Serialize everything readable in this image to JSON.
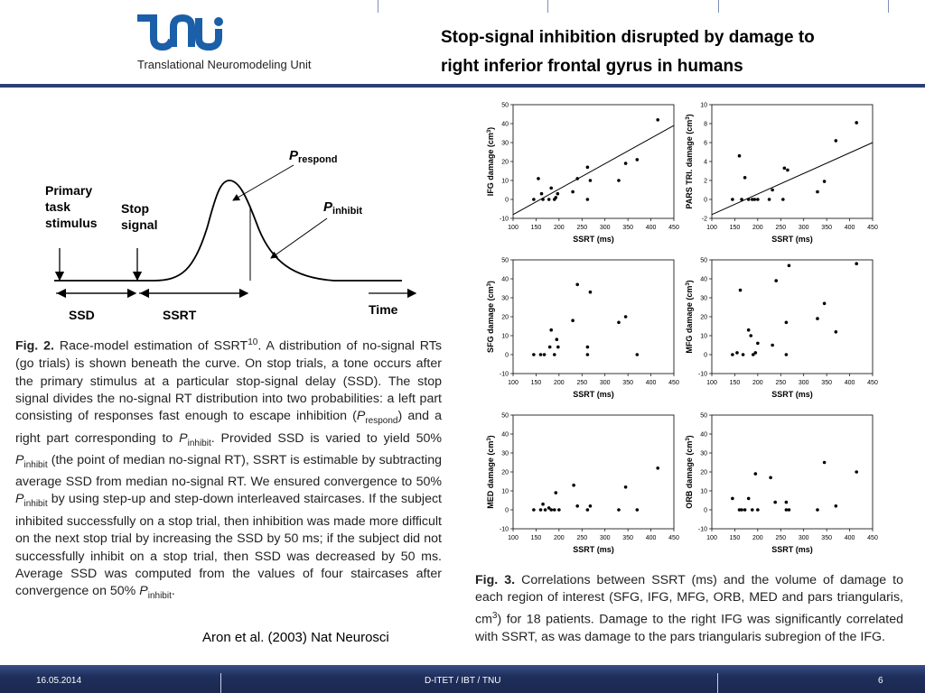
{
  "header": {
    "logo_text": "Translational Neuromodeling Unit",
    "title_line1": "Stop-signal inhibition disrupted by damage to",
    "title_line2": "right inferior frontal gyrus in humans"
  },
  "race_model": {
    "label_primary": [
      "Primary",
      "task",
      "stimulus"
    ],
    "label_stop": [
      "Stop",
      "signal"
    ],
    "p_respond": "P",
    "p_respond_sub": "respond",
    "p_inhibit": "P",
    "p_inhibit_sub": "inhibit",
    "ssd": "SSD",
    "ssrt": "SSRT",
    "time": "Time"
  },
  "fig2_caption": {
    "label": "Fig. 2.",
    "part1": " Race-model estimation of SSRT",
    "sup": "10",
    "part2": ". A distribution of no-signal RTs (go trials) is shown beneath the curve. On stop trials, a tone occurs after the primary stimulus at a particular stop-signal delay (SSD). The stop signal divides the no-signal RT distribution into two probabilities: a left part consisting of responses fast enough to escape inhibition (",
    "p": "P",
    "sub_respond": "respond",
    "part3": ") and a right part corresponding to ",
    "sub_inhibit": "inhibit",
    "part4": ". Provided SSD is varied to yield 50% ",
    "part5": " (the point of median no-signal RT), SSRT is estimable by subtracting average SSD from median no-signal RT. We ensured convergence to 50% ",
    "part6": " by using step-up and step-down interleaved staircases. If the subject inhibited successfully on a stop trial, then inhibition was made more difficult on the next stop trial by increasing the SSD by 50 ms; if the subject did not successfully inhibit on a stop trial, then SSD was decreased by 50 ms. Average SSD was computed from the values of four staircases after convergence on 50% ",
    "part7": "."
  },
  "citation": "Aron et al. (2003) Nat Neurosci",
  "fig3_caption": {
    "label": "Fig. 3.",
    "part1": " Correlations between SSRT (ms) and the volume of damage to each region of interest (SFG, IFG, MFG, ORB, MED and pars triangularis, cm",
    "sup": "3",
    "part2": ") for 18 patients. Damage to the right IFG was significantly correlated with SSRT, as was damage to the pars triangularis subregion of the IFG."
  },
  "footer": {
    "date": "16.05.2014",
    "center": "D-ITET / IBT / TNU",
    "page": "6"
  },
  "colors": {
    "header_rule": "#2b3f73",
    "logo_blue": "#1a5fa8",
    "footer_bg": "#1f2f5c"
  },
  "chart_data": [
    {
      "type": "scatter",
      "xlabel": "SSRT (ms)",
      "ylabel": "IFG damage (cm",
      "xlim": [
        100,
        450
      ],
      "ylim": [
        -10,
        50
      ],
      "xticks": [
        100,
        150,
        200,
        250,
        300,
        350,
        400,
        450
      ],
      "yticks": [
        -10,
        0,
        10,
        20,
        30,
        40,
        50
      ],
      "points": [
        [
          145,
          0
        ],
        [
          155,
          11
        ],
        [
          162,
          3
        ],
        [
          165,
          0
        ],
        [
          178,
          0
        ],
        [
          183,
          6
        ],
        [
          190,
          0
        ],
        [
          193,
          1
        ],
        [
          197,
          3
        ],
        [
          230,
          4
        ],
        [
          240,
          11
        ],
        [
          262,
          17
        ],
        [
          262,
          0
        ],
        [
          268,
          10
        ],
        [
          330,
          10
        ],
        [
          345,
          19
        ],
        [
          370,
          21
        ],
        [
          415,
          42
        ]
      ],
      "trend": [
        [
          100,
          -8
        ],
        [
          450,
          39
        ]
      ]
    },
    {
      "type": "scatter",
      "xlabel": "SSRT (ms)",
      "ylabel": "PARS TRI. damage (cm",
      "xlim": [
        100,
        450
      ],
      "ylim": [
        -2,
        10
      ],
      "xticks": [
        100,
        150,
        200,
        250,
        300,
        350,
        400,
        450
      ],
      "yticks": [
        -2,
        0,
        2,
        4,
        6,
        8,
        10
      ],
      "points": [
        [
          145,
          0
        ],
        [
          160,
          4.6
        ],
        [
          165,
          0
        ],
        [
          172,
          2.3
        ],
        [
          180,
          0
        ],
        [
          188,
          0
        ],
        [
          193,
          0
        ],
        [
          200,
          0
        ],
        [
          225,
          0
        ],
        [
          232,
          1
        ],
        [
          255,
          0
        ],
        [
          258,
          3.3
        ],
        [
          265,
          3.1
        ],
        [
          330,
          0.8
        ],
        [
          345,
          1.9
        ],
        [
          370,
          6.2
        ],
        [
          415,
          8.1
        ]
      ],
      "trend": [
        [
          100,
          -1.6
        ],
        [
          450,
          6
        ]
      ]
    },
    {
      "type": "scatter",
      "xlabel": "SSRT (ms)",
      "ylabel": "SFG damage (cm",
      "xlim": [
        100,
        450
      ],
      "ylim": [
        -10,
        50
      ],
      "xticks": [
        100,
        150,
        200,
        250,
        300,
        350,
        400,
        450
      ],
      "yticks": [
        -10,
        0,
        10,
        20,
        30,
        40,
        50
      ],
      "points": [
        [
          145,
          0
        ],
        [
          160,
          0
        ],
        [
          168,
          0
        ],
        [
          180,
          4
        ],
        [
          183,
          13
        ],
        [
          190,
          0
        ],
        [
          195,
          8
        ],
        [
          198,
          4
        ],
        [
          230,
          18
        ],
        [
          240,
          37
        ],
        [
          262,
          4
        ],
        [
          262,
          0
        ],
        [
          268,
          33
        ],
        [
          330,
          17
        ],
        [
          345,
          20
        ],
        [
          370,
          0
        ]
      ]
    },
    {
      "type": "scatter",
      "xlabel": "SSRT (ms)",
      "ylabel": "MFG damage (cm",
      "xlim": [
        100,
        450
      ],
      "ylim": [
        -10,
        50
      ],
      "xticks": [
        100,
        150,
        200,
        250,
        300,
        350,
        400,
        450
      ],
      "yticks": [
        -10,
        0,
        10,
        20,
        30,
        40,
        50
      ],
      "points": [
        [
          145,
          0
        ],
        [
          155,
          1
        ],
        [
          162,
          34
        ],
        [
          168,
          0
        ],
        [
          180,
          13
        ],
        [
          185,
          10
        ],
        [
          190,
          0
        ],
        [
          195,
          1
        ],
        [
          200,
          6
        ],
        [
          232,
          5
        ],
        [
          240,
          39
        ],
        [
          262,
          0
        ],
        [
          262,
          17
        ],
        [
          268,
          47
        ],
        [
          330,
          19
        ],
        [
          345,
          27
        ],
        [
          370,
          12
        ],
        [
          415,
          48
        ]
      ]
    },
    {
      "type": "scatter",
      "xlabel": "SSRT (ms)",
      "ylabel": "MED damage (cm",
      "xlim": [
        100,
        450
      ],
      "ylim": [
        -10,
        50
      ],
      "xticks": [
        100,
        150,
        200,
        250,
        300,
        350,
        400,
        450
      ],
      "yticks": [
        -10,
        0,
        10,
        20,
        30,
        40,
        50
      ],
      "points": [
        [
          145,
          0
        ],
        [
          160,
          0
        ],
        [
          165,
          3
        ],
        [
          170,
          0
        ],
        [
          178,
          1
        ],
        [
          183,
          0
        ],
        [
          190,
          0
        ],
        [
          193,
          9
        ],
        [
          200,
          0
        ],
        [
          232,
          13
        ],
        [
          240,
          2
        ],
        [
          262,
          0
        ],
        [
          268,
          2
        ],
        [
          330,
          0
        ],
        [
          345,
          12
        ],
        [
          370,
          0
        ],
        [
          415,
          22
        ]
      ]
    },
    {
      "type": "scatter",
      "xlabel": "SSRT (ms)",
      "ylabel": "ORB damage (cm",
      "xlim": [
        100,
        450
      ],
      "ylim": [
        -10,
        50
      ],
      "xticks": [
        100,
        150,
        200,
        250,
        300,
        350,
        400,
        450
      ],
      "yticks": [
        -10,
        0,
        10,
        20,
        30,
        40,
        50
      ],
      "points": [
        [
          145,
          6
        ],
        [
          160,
          0
        ],
        [
          165,
          0
        ],
        [
          172,
          0
        ],
        [
          180,
          6
        ],
        [
          188,
          0
        ],
        [
          195,
          19
        ],
        [
          200,
          0
        ],
        [
          228,
          17
        ],
        [
          238,
          4
        ],
        [
          262,
          4
        ],
        [
          262,
          0
        ],
        [
          268,
          0
        ],
        [
          330,
          0
        ],
        [
          345,
          25
        ],
        [
          370,
          2
        ],
        [
          415,
          20
        ]
      ]
    }
  ]
}
